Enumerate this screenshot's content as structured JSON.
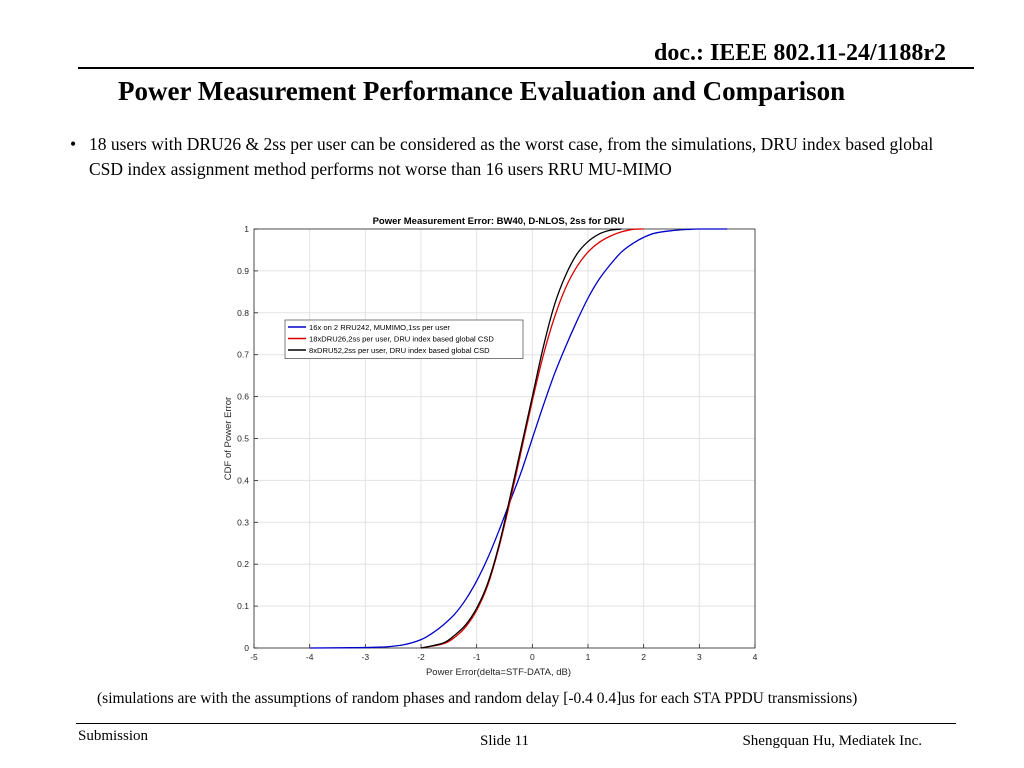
{
  "header": {
    "doc_id": "doc.: IEEE 802.11-24/1188r2",
    "title": "Power Measurement Performance Evaluation and Comparison"
  },
  "bullet": {
    "marker": "•",
    "text": "18 users with DRU26 & 2ss per user can be considered as the worst case, from the simulations, DRU index based global CSD index assignment method performs not worse than 16 users RRU MU-MIMO"
  },
  "chart_data": {
    "type": "line",
    "title": "Power Measurement Error: BW40, D-NLOS, 2ss for DRU",
    "xlabel": "Power Error(delta=STF-DATA, dB)",
    "ylabel": "CDF of Power Error",
    "xlim": [
      -5,
      4
    ],
    "ylim": [
      0,
      1
    ],
    "xticks": [
      -5,
      -4,
      -3,
      -2,
      -1,
      0,
      1,
      2,
      3,
      4
    ],
    "yticks": [
      0,
      0.1,
      0.2,
      0.3,
      0.4,
      0.5,
      0.6,
      0.7,
      0.8,
      0.9,
      1
    ],
    "grid": true,
    "legend_position": "upper-left",
    "series": [
      {
        "name": "16x on 2 RRU242, MUMIMO,1ss per user",
        "color": "#0000cc",
        "x": [
          -4.0,
          -3.0,
          -2.6,
          -2.3,
          -2.0,
          -1.8,
          -1.6,
          -1.4,
          -1.2,
          -1.0,
          -0.8,
          -0.6,
          -0.4,
          -0.2,
          0.0,
          0.2,
          0.4,
          0.6,
          0.8,
          1.0,
          1.2,
          1.4,
          1.6,
          1.8,
          2.0,
          2.2,
          2.5,
          2.8,
          3.0,
          3.5
        ],
        "y": [
          0.0,
          0.001,
          0.003,
          0.008,
          0.02,
          0.035,
          0.055,
          0.08,
          0.115,
          0.16,
          0.215,
          0.28,
          0.35,
          0.42,
          0.5,
          0.58,
          0.655,
          0.72,
          0.78,
          0.835,
          0.88,
          0.915,
          0.945,
          0.965,
          0.98,
          0.99,
          0.996,
          0.999,
          1.0,
          1.0
        ]
      },
      {
        "name": "18xDRU26,2ss per user, DRU index based global CSD",
        "color": "#dd0000",
        "x": [
          -2.0,
          -1.6,
          -1.4,
          -1.2,
          -1.0,
          -0.8,
          -0.6,
          -0.4,
          -0.2,
          0.0,
          0.2,
          0.4,
          0.6,
          0.8,
          1.0,
          1.2,
          1.4,
          1.6,
          1.8,
          2.0
        ],
        "y": [
          0.0,
          0.01,
          0.025,
          0.05,
          0.09,
          0.15,
          0.24,
          0.35,
          0.47,
          0.59,
          0.7,
          0.79,
          0.86,
          0.91,
          0.945,
          0.968,
          0.983,
          0.993,
          0.999,
          1.0
        ]
      },
      {
        "name": "8xDRU52,2ss per user, DRU index based global CSD",
        "color": "#000000",
        "x": [
          -2.0,
          -1.6,
          -1.4,
          -1.2,
          -1.0,
          -0.8,
          -0.6,
          -0.4,
          -0.2,
          0.0,
          0.2,
          0.4,
          0.6,
          0.8,
          1.0,
          1.2,
          1.4,
          1.6
        ],
        "y": [
          0.0,
          0.012,
          0.03,
          0.055,
          0.095,
          0.155,
          0.245,
          0.36,
          0.48,
          0.6,
          0.72,
          0.82,
          0.89,
          0.94,
          0.97,
          0.988,
          0.997,
          1.0
        ]
      }
    ]
  },
  "caption": "(simulations are with the assumptions of  random phases and random delay [-0.4 0.4]us for each STA PPDU transmissions)",
  "footer": {
    "left": "Submission",
    "middle": "Slide 11",
    "right": "Shengquan Hu, Mediatek Inc."
  }
}
